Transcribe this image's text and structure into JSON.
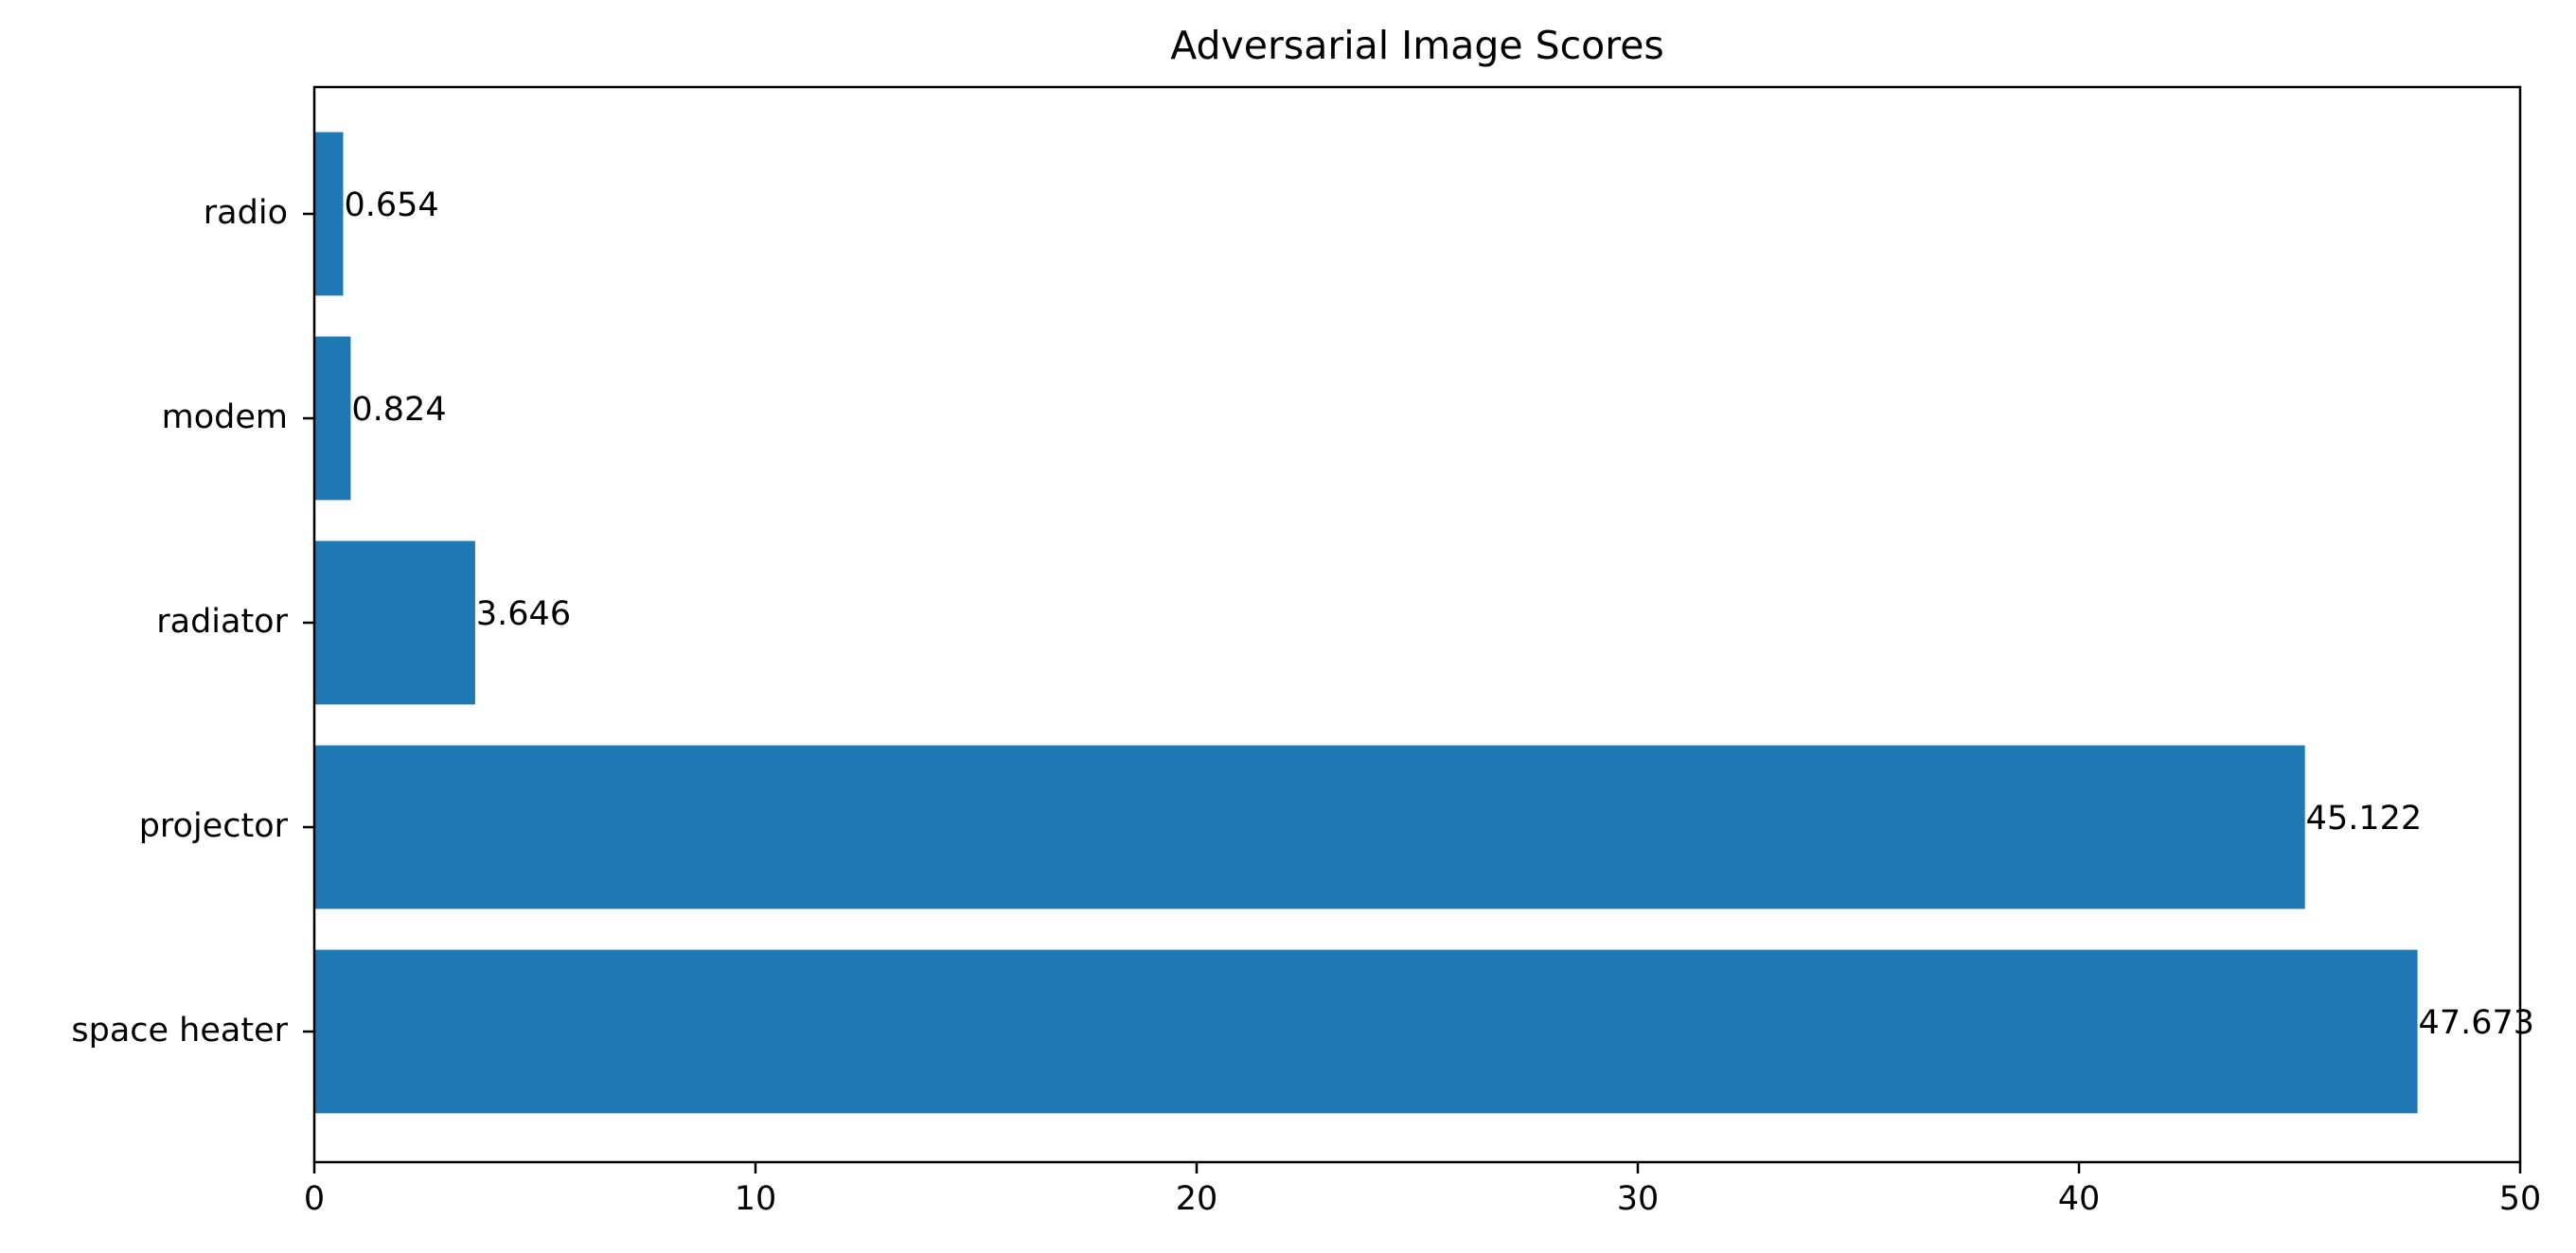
{
  "chart_data": {
    "type": "bar",
    "orientation": "horizontal",
    "title": "Adversarial Image Scores",
    "xlabel": "",
    "ylabel": "",
    "categories": [
      "space heater",
      "projector",
      "radiator",
      "modem",
      "radio"
    ],
    "values": [
      47.673,
      45.122,
      3.646,
      0.824,
      0.654
    ],
    "value_labels": [
      "47.673",
      "45.122",
      "3.646",
      "0.824",
      "0.654"
    ],
    "xlim": [
      0,
      50
    ],
    "x_ticks": [
      0,
      10,
      20,
      30,
      40,
      50
    ],
    "x_tick_labels": [
      "0",
      "10",
      "20",
      "30",
      "40",
      "50"
    ],
    "grid": false,
    "bar_color": "#1f77b4"
  }
}
